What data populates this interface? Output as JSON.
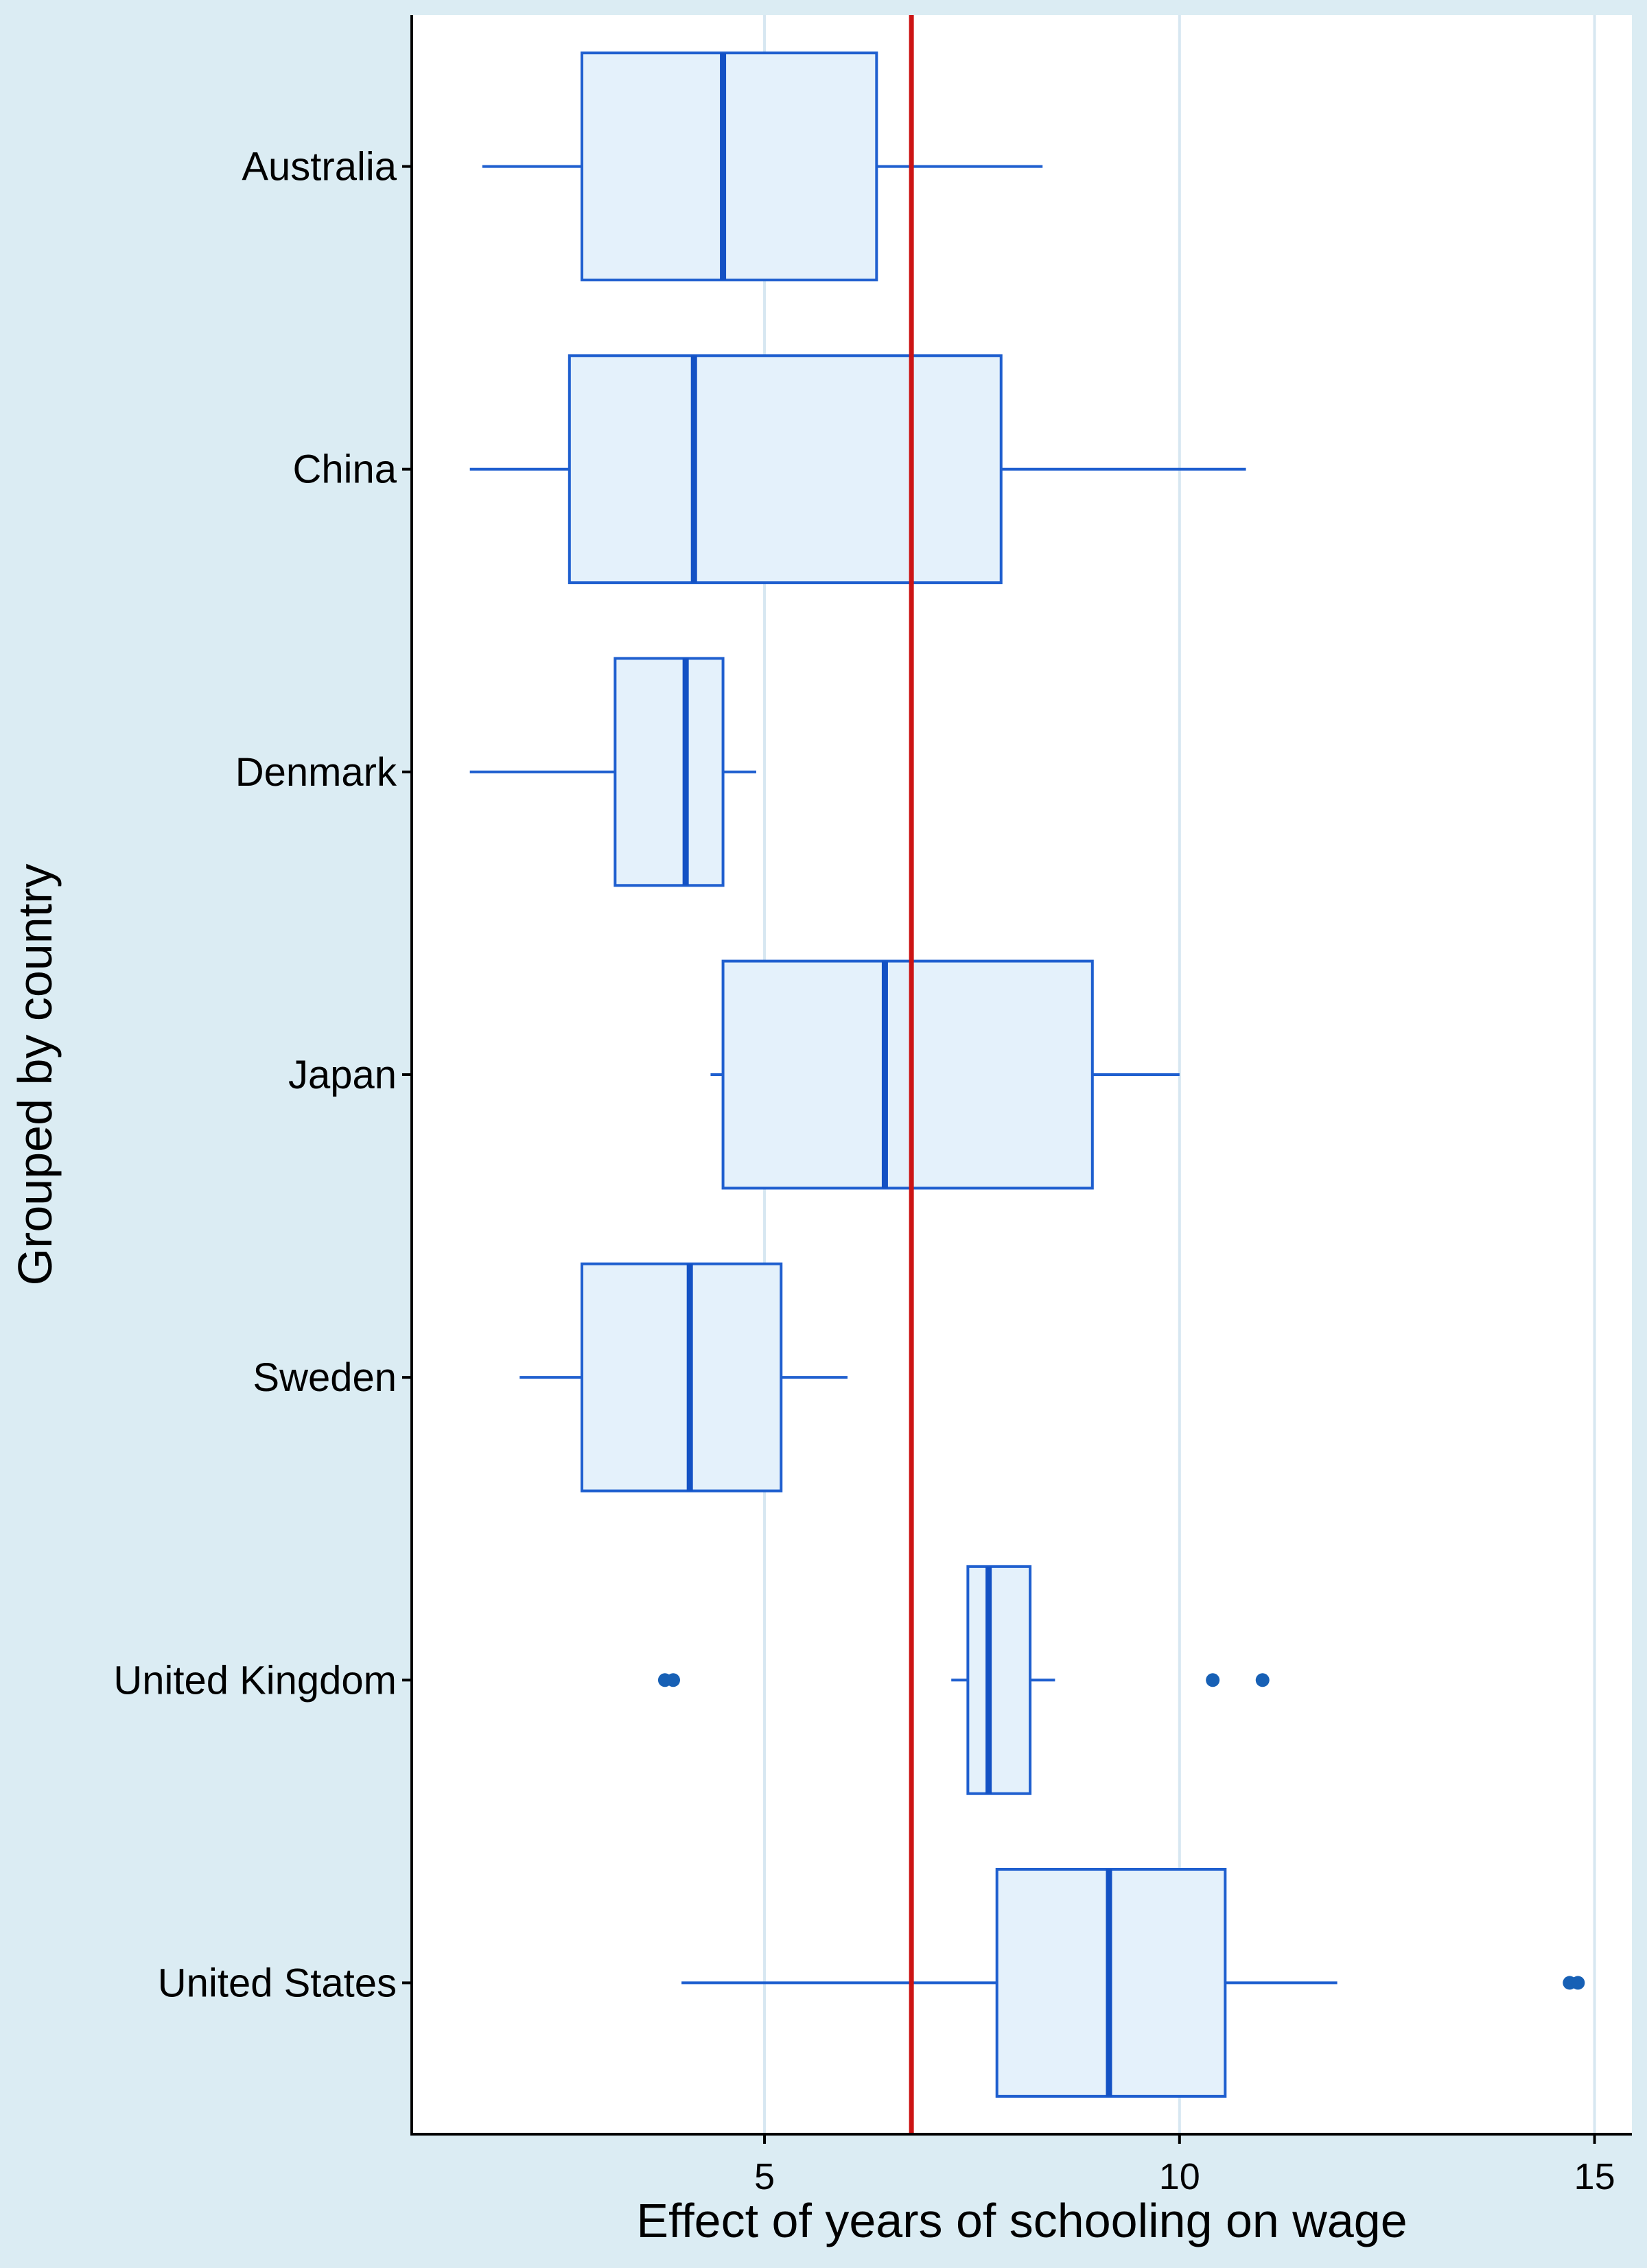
{
  "chart_data": {
    "type": "boxplot",
    "orientation": "horizontal",
    "title": "",
    "xlabel": "Effect of years of schooling on wage",
    "ylabel": "Grouped by country",
    "xlim": [
      0.75,
      15.45
    ],
    "x_ticks": [
      5,
      10,
      15
    ],
    "x_tick_labels": [
      "5",
      "10",
      "15"
    ],
    "grid": "vertical",
    "legend": "none",
    "colors": {
      "plot_background": "#ffffff",
      "outer_background": "#dbecf3",
      "box_fill": "#e4f1fb",
      "box_stroke": "#1f5fcf",
      "median": "#1351c4",
      "outlier": "#1760b5",
      "reference_line": "#cc1414",
      "grid": "#d7e7f1"
    },
    "reference_line": {
      "x": 6.77
    },
    "categories": [
      "Australia",
      "China",
      "Denmark",
      "Japan",
      "Sweden",
      "United Kingdom",
      "United States"
    ],
    "boxes": [
      {
        "name": "Australia",
        "whisker_low": 1.6,
        "q1": 2.8,
        "median": 4.5,
        "q3": 6.35,
        "whisker_high": 8.35,
        "outliers": []
      },
      {
        "name": "China",
        "whisker_low": 1.45,
        "q1": 2.65,
        "median": 4.15,
        "q3": 7.85,
        "whisker_high": 10.8,
        "outliers": []
      },
      {
        "name": "Denmark",
        "whisker_low": 1.45,
        "q1": 3.2,
        "median": 4.05,
        "q3": 4.5,
        "whisker_high": 4.9,
        "outliers": []
      },
      {
        "name": "Japan",
        "whisker_low": 4.35,
        "q1": 4.5,
        "median": 6.45,
        "q3": 8.95,
        "whisker_high": 10.0,
        "outliers": []
      },
      {
        "name": "Sweden",
        "whisker_low": 2.05,
        "q1": 2.8,
        "median": 4.1,
        "q3": 5.2,
        "whisker_high": 6.0,
        "outliers": []
      },
      {
        "name": "United Kingdom",
        "whisker_low": 7.25,
        "q1": 7.45,
        "median": 7.7,
        "q3": 8.2,
        "whisker_high": 8.5,
        "outliers": [
          3.8,
          3.9,
          10.4,
          11.0
        ]
      },
      {
        "name": "United States",
        "whisker_low": 4.0,
        "q1": 7.8,
        "median": 9.15,
        "q3": 10.55,
        "whisker_high": 11.9,
        "outliers": [
          14.7,
          14.8
        ]
      }
    ]
  }
}
